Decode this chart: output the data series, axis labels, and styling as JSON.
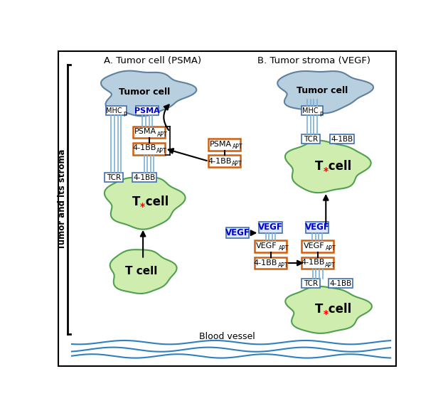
{
  "title_A": "A. Tumor cell (PSMA)",
  "title_B": "B. Tumor stroma (VEGF)",
  "ylabel": "Tumor and its stroma",
  "blood_vessel_label": "Blood vessel",
  "bg_color": "#ffffff",
  "tumor_cell_fill": "#b8cfe0",
  "tumor_cell_edge": "#6080a0",
  "t_cell_fill": "#d0edb0",
  "t_cell_edge": "#50a050",
  "box_orange_edge": "#d06010",
  "box_blue_edge": "#4070b0",
  "box_fill": "#ffffff",
  "vegf_box_fill": "#dce8ff",
  "psma_text_color": "#0000cc",
  "vegf_text_color": "#0000cc",
  "connector_color": "#7ab0d8",
  "arrow_color": "#000000",
  "blood_vessel_color": "#3080c0"
}
